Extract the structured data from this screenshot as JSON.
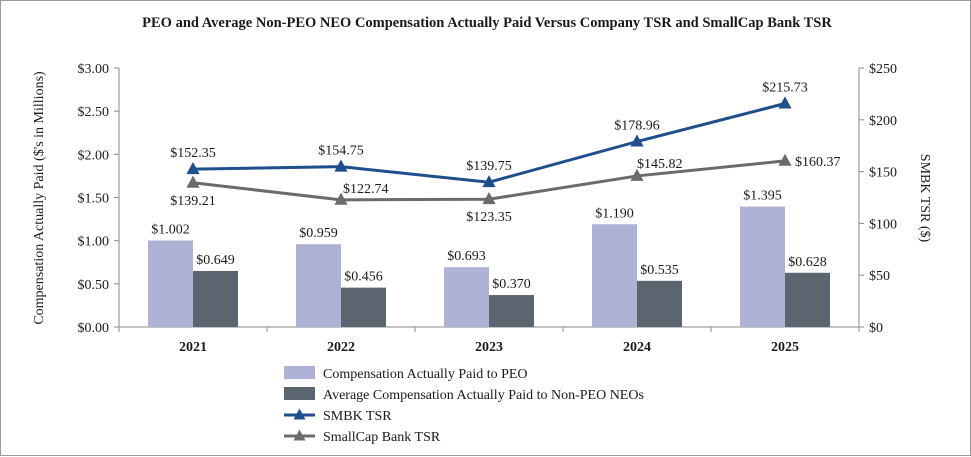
{
  "chart_data": {
    "type": "bar",
    "title": "PEO and Average Non-PEO NEO Compensation Actually Paid Versus Company TSR and SmallCap Bank TSR",
    "categories": [
      "2021",
      "2022",
      "2023",
      "2024",
      "2025"
    ],
    "ylabel": "Compensation Actually Paid ($'s in Millions)",
    "y2label": "SMBK TSR ($)",
    "ylim": [
      0,
      3.0
    ],
    "y2lim": [
      0,
      250
    ],
    "yticks": [
      "$0.00",
      "$0.50",
      "$1.00",
      "$1.50",
      "$2.00",
      "$2.50",
      "$3.00"
    ],
    "y2ticks": [
      "$0",
      "$50",
      "$100",
      "$150",
      "$200",
      "$250"
    ],
    "grid": false,
    "legend_position": "bottom",
    "bar_series": [
      {
        "name": "Compensation Actually Paid to PEO",
        "color": "#aeb2d4",
        "values": [
          1.002,
          0.959,
          0.693,
          1.19,
          1.395
        ],
        "labels": [
          "$1.002",
          "$0.959",
          "$0.693",
          "$1.190",
          "$1.395"
        ]
      },
      {
        "name": "Average Compensation Actually Paid to Non-PEO NEOs",
        "color": "#5b6570",
        "values": [
          0.649,
          0.456,
          0.37,
          0.535,
          0.628
        ],
        "labels": [
          "$0.649",
          "$0.456",
          "$0.370",
          "$0.535",
          "$0.628"
        ]
      }
    ],
    "line_series": [
      {
        "name": "SMBK TSR",
        "color": "#1f4e8c",
        "axis": "right",
        "values": [
          152.35,
          154.75,
          139.75,
          178.96,
          215.73
        ],
        "labels": [
          "$152.35",
          "$154.75",
          "$139.75",
          "$178.96",
          "$215.73"
        ]
      },
      {
        "name": "SmallCap Bank TSR",
        "color": "#6b6b6b",
        "axis": "right",
        "values": [
          139.21,
          122.74,
          123.35,
          145.82,
          160.37
        ],
        "labels": [
          "$139.21",
          "$122.74",
          "$123.35",
          "$145.82",
          "$160.37"
        ]
      }
    ]
  }
}
